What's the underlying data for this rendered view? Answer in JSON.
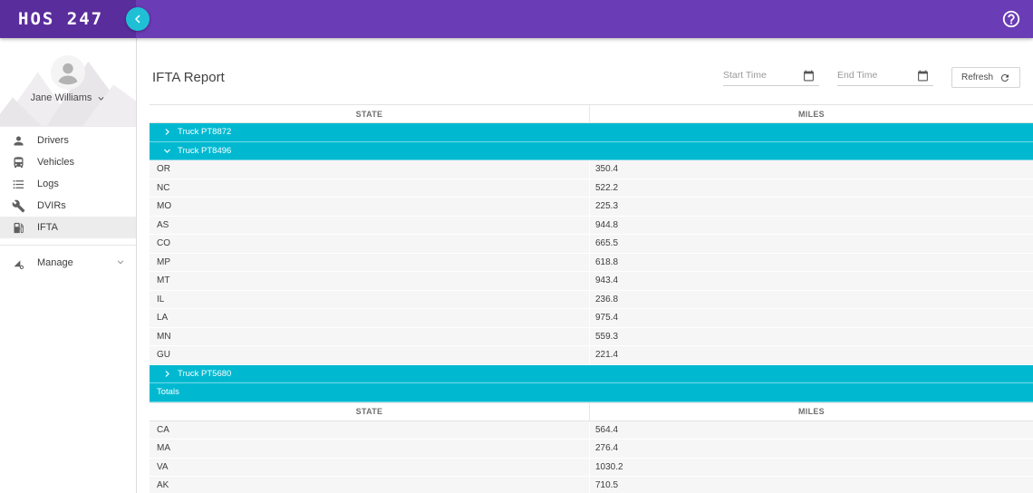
{
  "app": {
    "logo": "HOS 247"
  },
  "sidebar": {
    "user": {
      "name": "Jane Williams"
    },
    "items": [
      {
        "label": "Drivers",
        "icon": "person-icon",
        "active": false
      },
      {
        "label": "Vehicles",
        "icon": "bus-icon",
        "active": false
      },
      {
        "label": "Logs",
        "icon": "list-icon",
        "active": false
      },
      {
        "label": "DVIRs",
        "icon": "wrench-icon",
        "active": false
      },
      {
        "label": "IFTA",
        "icon": "fuel-pump-icon",
        "active": true
      },
      {
        "label": "Manage",
        "icon": "ruler-gear-icon",
        "active": false
      }
    ]
  },
  "header": {
    "title": "IFTA Report",
    "start_time_placeholder": "Start Time",
    "end_time_placeholder": "End Time",
    "refresh_label": "Refresh"
  },
  "table": {
    "columns": [
      "STATE",
      "MILES"
    ],
    "groups": [
      {
        "label": "Truck PT8872",
        "expanded": false,
        "rows": []
      },
      {
        "label": "Truck PT8496",
        "expanded": true,
        "rows": [
          {
            "state": "OR",
            "miles": "350.4"
          },
          {
            "state": "NC",
            "miles": "522.2"
          },
          {
            "state": "MO",
            "miles": "225.3"
          },
          {
            "state": "AS",
            "miles": "944.8"
          },
          {
            "state": "CO",
            "miles": "665.5"
          },
          {
            "state": "MP",
            "miles": "618.8"
          },
          {
            "state": "MT",
            "miles": "943.4"
          },
          {
            "state": "IL",
            "miles": "236.8"
          },
          {
            "state": "LA",
            "miles": "975.4"
          },
          {
            "state": "MN",
            "miles": "559.3"
          },
          {
            "state": "GU",
            "miles": "221.4"
          }
        ]
      },
      {
        "label": "Truck PT5680",
        "expanded": false,
        "rows": []
      }
    ],
    "totals": {
      "label": "Totals",
      "rows": [
        {
          "state": "CA",
          "miles": "564.4"
        },
        {
          "state": "MA",
          "miles": "276.4"
        },
        {
          "state": "VA",
          "miles": "1030.2"
        },
        {
          "state": "AK",
          "miles": "710.5"
        }
      ]
    }
  },
  "colors": {
    "topbar": "#6a3cb5",
    "topbar_brand": "#5a2d9d",
    "accent_cyan": "#00b9d1",
    "collapse_button": "#1fc0d6",
    "active_item_bg": "#ececec",
    "row_bg": "#f6f6f6"
  }
}
